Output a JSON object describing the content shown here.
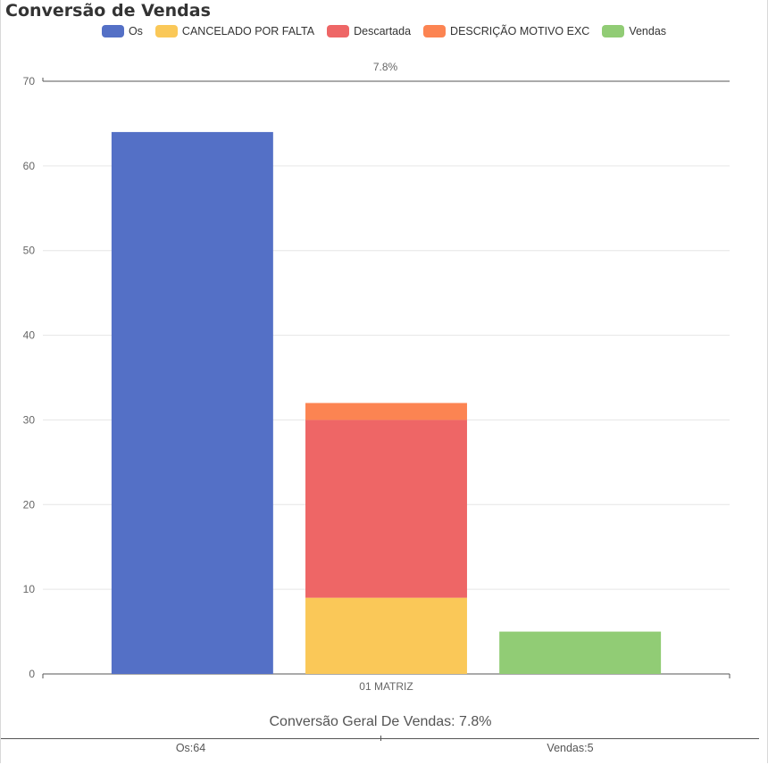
{
  "chart_data": {
    "type": "bar",
    "title": "Conversão de Vendas",
    "categories": [
      "01 MATRIZ"
    ],
    "ylim": [
      0,
      70
    ],
    "yticks": [
      0,
      10,
      20,
      30,
      40,
      50,
      60,
      70
    ],
    "grid": true,
    "legend_position": "top-center",
    "top_annotation": "7.8%",
    "series": [
      {
        "name": "Os",
        "color": "#5470c6",
        "stack": "os",
        "values": [
          64
        ]
      },
      {
        "name": "CANCELADO POR FALTA",
        "color": "#fac858",
        "stack": "perdas",
        "values": [
          9
        ]
      },
      {
        "name": "Descartada",
        "color": "#ee6666",
        "stack": "perdas",
        "values": [
          21
        ]
      },
      {
        "name": "DESCRIÇÃO MOTIVO EXC",
        "color": "#fc8452",
        "stack": "perdas",
        "values": [
          2
        ]
      },
      {
        "name": "Vendas",
        "color": "#91cc75",
        "stack": "vendas",
        "values": [
          5
        ]
      }
    ]
  },
  "summary": {
    "text": "Conversão Geral De Vendas: 7.8%",
    "items": [
      {
        "label": "Os:64"
      },
      {
        "label": "Vendas:5"
      }
    ]
  }
}
